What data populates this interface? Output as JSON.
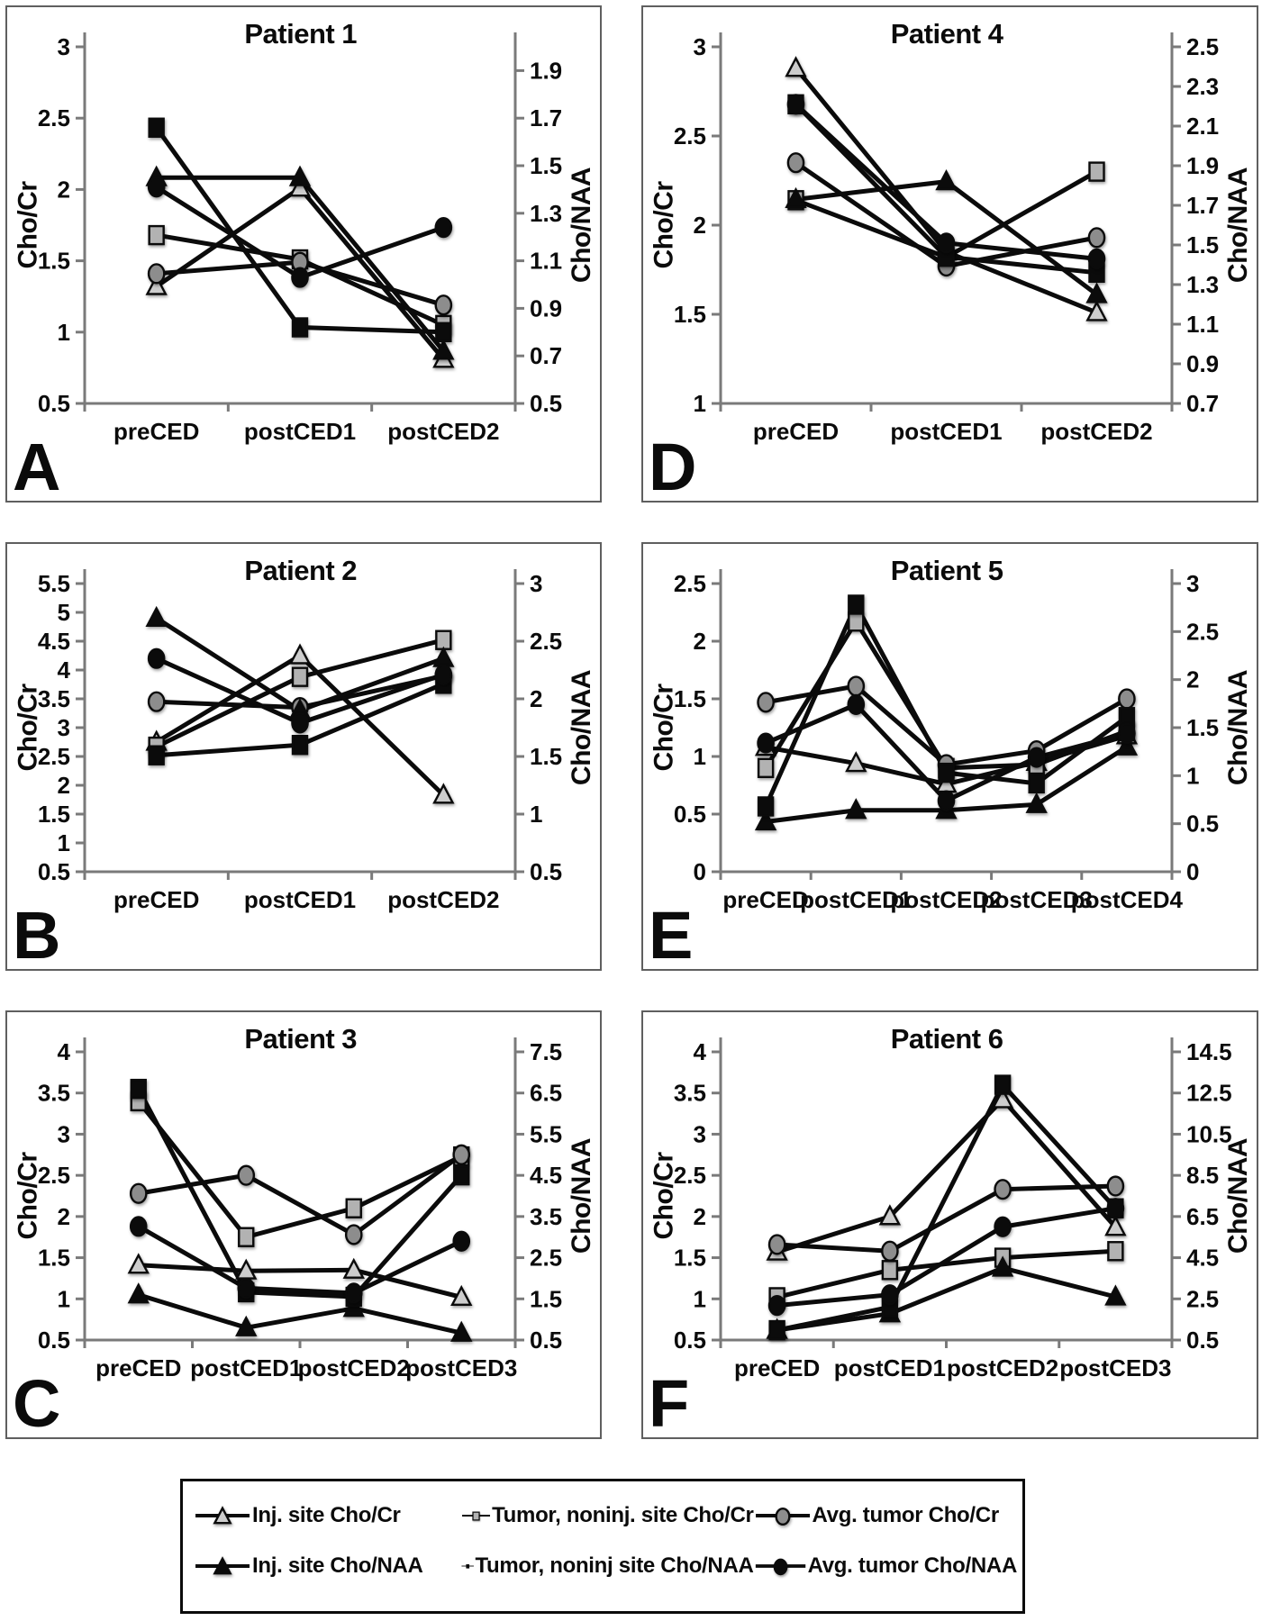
{
  "figure": {
    "panel_letters": [
      "A",
      "D",
      "B",
      "E",
      "C",
      "F"
    ]
  },
  "legend": {
    "items": [
      {
        "marker": "triangle-open",
        "label": "Inj. site Cho/Cr"
      },
      {
        "marker": "square-gray",
        "label": "Tumor, noninj. site Cho/Cr"
      },
      {
        "marker": "circle-gray",
        "label": "Avg. tumor Cho/Cr"
      },
      {
        "marker": "triangle-filled",
        "label": "Inj. site Cho/NAA"
      },
      {
        "marker": "square-filled",
        "label": "Tumor, noninj site Cho/NAA"
      },
      {
        "marker": "circle-filled",
        "label": "Avg. tumor Cho/NAA"
      }
    ]
  },
  "chart_data": [
    {
      "type": "line",
      "panel_label": "A",
      "title": "Patient 1",
      "x_categories": [
        "preCED",
        "postCED1",
        "postCED2"
      ],
      "left_axis": {
        "label": "Cho/Cr",
        "min": 0.5,
        "max": 3,
        "ticks": [
          0.5,
          1,
          1.5,
          2,
          2.5,
          3
        ]
      },
      "right_axis": {
        "label": "Cho/NAA",
        "min": 0.5,
        "max": 2.0,
        "ticks": [
          0.5,
          0.7,
          0.9,
          1.1,
          1.3,
          1.5,
          1.7,
          1.9
        ]
      },
      "series": [
        {
          "name": "Inj. site Cho/Cr",
          "axis": "left",
          "marker": "triangle-open",
          "values": [
            1.32,
            2.01,
            0.81
          ]
        },
        {
          "name": "Tumor, noninj. site Cho/Cr",
          "axis": "left",
          "marker": "square-gray",
          "values": [
            1.68,
            1.51,
            1.05
          ]
        },
        {
          "name": "Avg. tumor Cho/Cr",
          "axis": "left",
          "marker": "circle-gray",
          "values": [
            1.41,
            1.49,
            1.19
          ]
        },
        {
          "name": "Inj. site Cho/NAA",
          "axis": "right",
          "marker": "triangle-filled",
          "values": [
            1.45,
            1.45,
            0.72
          ]
        },
        {
          "name": "Tumor, noninj site Cho/NAA",
          "axis": "right",
          "marker": "square-filled",
          "values": [
            1.66,
            0.82,
            0.8
          ]
        },
        {
          "name": "Avg. tumor Cho/NAA",
          "axis": "right",
          "marker": "circle-filled",
          "values": [
            1.41,
            1.03,
            1.24
          ]
        }
      ]
    },
    {
      "type": "line",
      "panel_label": "D",
      "title": "Patient 4",
      "x_categories": [
        "preCED",
        "postCED1",
        "postCED2"
      ],
      "left_axis": {
        "label": "Cho/Cr",
        "min": 1,
        "max": 3,
        "ticks": [
          1,
          1.5,
          2,
          2.5,
          3
        ]
      },
      "right_axis": {
        "label": "Cho/NAA",
        "min": 0.7,
        "max": 2.5,
        "ticks": [
          0.7,
          0.9,
          1.1,
          1.3,
          1.5,
          1.7,
          1.9,
          2.1,
          2.3,
          2.5
        ]
      },
      "series": [
        {
          "name": "Inj. site Cho/Cr",
          "axis": "left",
          "marker": "triangle-open",
          "values": [
            2.88,
            1.85,
            1.51
          ]
        },
        {
          "name": "Tumor, noninj. site Cho/Cr",
          "axis": "left",
          "marker": "square-gray",
          "values": [
            2.14,
            1.82,
            2.3
          ]
        },
        {
          "name": "Avg. tumor Cho/Cr",
          "axis": "left",
          "marker": "circle-gray",
          "values": [
            2.35,
            1.77,
            1.93
          ]
        },
        {
          "name": "Inj. site Cho/NAA",
          "axis": "right",
          "marker": "triangle-filled",
          "values": [
            1.73,
            1.82,
            1.25
          ]
        },
        {
          "name": "Tumor, noninj site Cho/NAA",
          "axis": "right",
          "marker": "square-filled",
          "values": [
            2.21,
            1.44,
            1.36
          ]
        },
        {
          "name": "Avg. tumor Cho/NAA",
          "axis": "right",
          "marker": "circle-filled",
          "values": [
            2.21,
            1.51,
            1.43
          ]
        }
      ]
    },
    {
      "type": "line",
      "panel_label": "B",
      "title": "Patient 2",
      "x_categories": [
        "preCED",
        "postCED1",
        "postCED2"
      ],
      "left_axis": {
        "label": "Cho/Cr",
        "min": 0.5,
        "max": 5.5,
        "ticks": [
          0.5,
          1,
          1.5,
          2,
          2.5,
          3,
          3.5,
          4,
          4.5,
          5,
          5.5
        ]
      },
      "right_axis": {
        "label": "Cho/NAA",
        "min": 0.5,
        "max": 3,
        "ticks": [
          0.5,
          1,
          1.5,
          2,
          2.5,
          3
        ]
      },
      "series": [
        {
          "name": "Inj. site Cho/Cr",
          "axis": "left",
          "marker": "triangle-open",
          "values": [
            2.75,
            4.25,
            1.83
          ]
        },
        {
          "name": "Tumor, noninj. site Cho/Cr",
          "axis": "left",
          "marker": "square-gray",
          "values": [
            2.67,
            3.88,
            4.52
          ]
        },
        {
          "name": "Avg. tumor Cho/Cr",
          "axis": "left",
          "marker": "circle-gray",
          "values": [
            3.45,
            3.35,
            3.9
          ]
        },
        {
          "name": "Inj. site Cho/NAA",
          "axis": "right",
          "marker": "triangle-filled",
          "values": [
            2.7,
            1.9,
            2.35
          ]
        },
        {
          "name": "Tumor, noninj site Cho/NAA",
          "axis": "right",
          "marker": "square-filled",
          "values": [
            1.51,
            1.6,
            2.13
          ]
        },
        {
          "name": "Avg. tumor Cho/NAA",
          "axis": "right",
          "marker": "circle-filled",
          "values": [
            2.35,
            1.79,
            2.21
          ]
        }
      ]
    },
    {
      "type": "line",
      "panel_label": "E",
      "title": "Patient 5",
      "x_categories": [
        "preCED",
        "postCED1",
        "postCED2",
        "postCED3",
        "postCED4"
      ],
      "left_axis": {
        "label": "Cho/Cr",
        "min": 0,
        "max": 2.5,
        "ticks": [
          0,
          0.5,
          1,
          1.5,
          2,
          2.5
        ]
      },
      "right_axis": {
        "label": "Cho/NAA",
        "min": 0,
        "max": 3,
        "ticks": [
          0,
          0.5,
          1,
          1.5,
          2,
          2.5,
          3
        ]
      },
      "series": [
        {
          "name": "Inj. site Cho/Cr",
          "axis": "left",
          "marker": "triangle-open",
          "values": [
            1.08,
            0.94,
            0.76,
            0.95,
            1.18
          ]
        },
        {
          "name": "Tumor, noninj. site Cho/Cr",
          "axis": "left",
          "marker": "square-gray",
          "values": [
            0.9,
            2.17,
            0.9,
            0.93,
            1.22
          ]
        },
        {
          "name": "Avg. tumor Cho/Cr",
          "axis": "left",
          "marker": "circle-gray",
          "values": [
            1.47,
            1.61,
            0.93,
            1.05,
            1.5
          ]
        },
        {
          "name": "Inj. site Cho/NAA",
          "axis": "right",
          "marker": "triangle-filled",
          "values": [
            0.52,
            0.64,
            0.64,
            0.7,
            1.3
          ]
        },
        {
          "name": "Tumor, noninj site Cho/NAA",
          "axis": "right",
          "marker": "square-filled",
          "values": [
            0.68,
            2.78,
            1.03,
            0.92,
            1.61
          ]
        },
        {
          "name": "Avg. tumor Cho/NAA",
          "axis": "right",
          "marker": "circle-filled",
          "values": [
            1.34,
            1.74,
            0.74,
            1.19,
            1.44
          ]
        }
      ]
    },
    {
      "type": "line",
      "panel_label": "C",
      "title": "Patient 3",
      "x_categories": [
        "preCED",
        "postCED1",
        "postCED2",
        "postCED3"
      ],
      "left_axis": {
        "label": "Cho/Cr",
        "min": 0.5,
        "max": 4,
        "ticks": [
          0.5,
          1,
          1.5,
          2,
          2.5,
          3,
          3.5,
          4
        ]
      },
      "right_axis": {
        "label": "Cho/NAA",
        "min": 0.5,
        "max": 7.5,
        "ticks": [
          0.5,
          1.5,
          2.5,
          3.5,
          4.5,
          5.5,
          6.5,
          7.5
        ]
      },
      "series": [
        {
          "name": "Inj. site Cho/Cr",
          "axis": "left",
          "marker": "triangle-open",
          "values": [
            1.41,
            1.34,
            1.35,
            1.02
          ]
        },
        {
          "name": "Tumor, noninj. site Cho/Cr",
          "axis": "left",
          "marker": "square-gray",
          "values": [
            3.4,
            1.75,
            2.1,
            2.73
          ]
        },
        {
          "name": "Avg. tumor Cho/Cr",
          "axis": "left",
          "marker": "circle-gray",
          "values": [
            2.28,
            2.5,
            1.78,
            2.75
          ]
        },
        {
          "name": "Inj. site Cho/NAA",
          "axis": "right",
          "marker": "triangle-filled",
          "values": [
            1.6,
            0.8,
            1.27,
            0.67
          ]
        },
        {
          "name": "Tumor, noninj site Cho/NAA",
          "axis": "right",
          "marker": "square-filled",
          "values": [
            6.6,
            1.66,
            1.55,
            4.5
          ]
        },
        {
          "name": "Avg. tumor Cho/NAA",
          "axis": "right",
          "marker": "circle-filled",
          "values": [
            3.26,
            1.76,
            1.64,
            2.9
          ]
        }
      ]
    },
    {
      "type": "line",
      "panel_label": "F",
      "title": "Patient 6",
      "x_categories": [
        "preCED",
        "postCED1",
        "postCED2",
        "postCED3"
      ],
      "left_axis": {
        "label": "Cho/Cr",
        "min": 0.5,
        "max": 4,
        "ticks": [
          0.5,
          1,
          1.5,
          2,
          2.5,
          3,
          3.5,
          4
        ]
      },
      "right_axis": {
        "label": "Cho/NAA",
        "min": 0.5,
        "max": 14.5,
        "ticks": [
          0.5,
          2.5,
          4.5,
          6.5,
          8.5,
          10.5,
          12.5,
          14.5
        ]
      },
      "series": [
        {
          "name": "Inj. site Cho/Cr",
          "axis": "left",
          "marker": "triangle-open",
          "values": [
            1.57,
            2.0,
            3.42,
            1.87
          ]
        },
        {
          "name": "Tumor, noninj. site Cho/Cr",
          "axis": "left",
          "marker": "square-gray",
          "values": [
            1.02,
            1.35,
            1.5,
            1.58
          ]
        },
        {
          "name": "Avg. tumor Cho/Cr",
          "axis": "left",
          "marker": "circle-gray",
          "values": [
            1.66,
            1.58,
            2.33,
            2.37
          ]
        },
        {
          "name": "Inj. site Cho/NAA",
          "axis": "right",
          "marker": "triangle-filled",
          "values": [
            0.98,
            1.78,
            4.0,
            2.6
          ]
        },
        {
          "name": "Tumor, noninj site Cho/NAA",
          "axis": "right",
          "marker": "square-filled",
          "values": [
            0.98,
            2.1,
            12.9,
            6.9
          ]
        },
        {
          "name": "Avg. tumor Cho/NAA",
          "axis": "right",
          "marker": "circle-filled",
          "values": [
            2.18,
            2.7,
            6.0,
            6.9
          ]
        }
      ]
    }
  ]
}
